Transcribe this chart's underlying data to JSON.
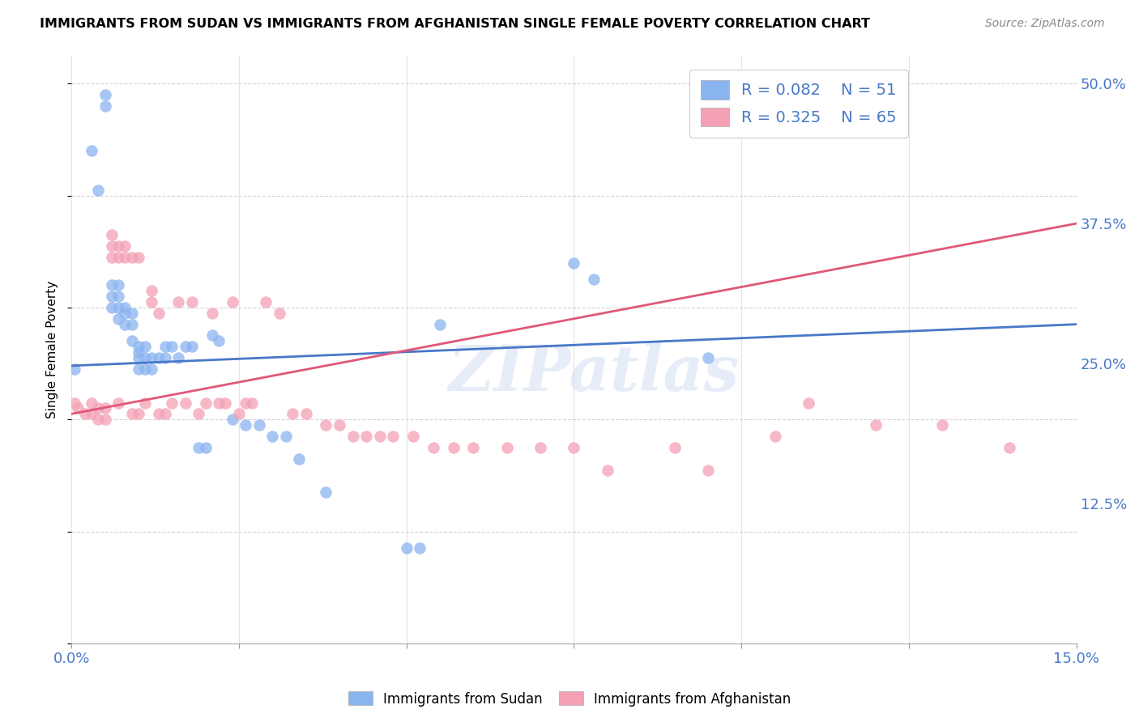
{
  "title": "IMMIGRANTS FROM SUDAN VS IMMIGRANTS FROM AFGHANISTAN SINGLE FEMALE POVERTY CORRELATION CHART",
  "source": "Source: ZipAtlas.com",
  "ylabel": "Single Female Poverty",
  "xlim": [
    0.0,
    0.15
  ],
  "ylim": [
    0.0,
    0.525
  ],
  "ytick_labels": [
    "12.5%",
    "25.0%",
    "37.5%",
    "50.0%"
  ],
  "ytick_values": [
    0.125,
    0.25,
    0.375,
    0.5
  ],
  "watermark": "ZIPatlas",
  "legend_r1": "R = 0.082",
  "legend_n1": "N = 51",
  "legend_r2": "R = 0.325",
  "legend_n2": "N = 65",
  "color_sudan": "#8ab4f0",
  "color_afghanistan": "#f4a0b5",
  "color_line_sudan": "#4878c8",
  "color_line_afghanistan": "#e05878",
  "sudan_x": [
    0.0005,
    0.003,
    0.004,
    0.005,
    0.005,
    0.006,
    0.006,
    0.006,
    0.007,
    0.007,
    0.007,
    0.007,
    0.008,
    0.008,
    0.008,
    0.009,
    0.009,
    0.009,
    0.01,
    0.01,
    0.01,
    0.01,
    0.011,
    0.011,
    0.011,
    0.012,
    0.012,
    0.013,
    0.014,
    0.014,
    0.015,
    0.016,
    0.017,
    0.018,
    0.019,
    0.02,
    0.021,
    0.022,
    0.024,
    0.026,
    0.028,
    0.03,
    0.032,
    0.034,
    0.038,
    0.05,
    0.052,
    0.055,
    0.075,
    0.078,
    0.095
  ],
  "sudan_y": [
    0.245,
    0.44,
    0.405,
    0.49,
    0.48,
    0.32,
    0.31,
    0.3,
    0.32,
    0.31,
    0.3,
    0.29,
    0.3,
    0.295,
    0.285,
    0.295,
    0.285,
    0.27,
    0.265,
    0.26,
    0.255,
    0.245,
    0.265,
    0.255,
    0.245,
    0.255,
    0.245,
    0.255,
    0.265,
    0.255,
    0.265,
    0.255,
    0.265,
    0.265,
    0.175,
    0.175,
    0.275,
    0.27,
    0.2,
    0.195,
    0.195,
    0.185,
    0.185,
    0.165,
    0.135,
    0.085,
    0.085,
    0.285,
    0.34,
    0.325,
    0.255
  ],
  "afghanistan_x": [
    0.0005,
    0.001,
    0.002,
    0.003,
    0.003,
    0.004,
    0.004,
    0.005,
    0.005,
    0.006,
    0.006,
    0.006,
    0.007,
    0.007,
    0.007,
    0.008,
    0.008,
    0.009,
    0.009,
    0.01,
    0.01,
    0.011,
    0.012,
    0.012,
    0.013,
    0.013,
    0.014,
    0.015,
    0.016,
    0.017,
    0.018,
    0.019,
    0.02,
    0.021,
    0.022,
    0.023,
    0.024,
    0.025,
    0.026,
    0.027,
    0.029,
    0.031,
    0.033,
    0.035,
    0.038,
    0.04,
    0.042,
    0.044,
    0.046,
    0.048,
    0.051,
    0.054,
    0.057,
    0.06,
    0.065,
    0.07,
    0.075,
    0.08,
    0.09,
    0.095,
    0.105,
    0.11,
    0.12,
    0.13,
    0.14
  ],
  "afghanistan_y": [
    0.215,
    0.21,
    0.205,
    0.215,
    0.205,
    0.21,
    0.2,
    0.21,
    0.2,
    0.365,
    0.355,
    0.345,
    0.355,
    0.345,
    0.215,
    0.355,
    0.345,
    0.345,
    0.205,
    0.345,
    0.205,
    0.215,
    0.315,
    0.305,
    0.295,
    0.205,
    0.205,
    0.215,
    0.305,
    0.215,
    0.305,
    0.205,
    0.215,
    0.295,
    0.215,
    0.215,
    0.305,
    0.205,
    0.215,
    0.215,
    0.305,
    0.295,
    0.205,
    0.205,
    0.195,
    0.195,
    0.185,
    0.185,
    0.185,
    0.185,
    0.185,
    0.175,
    0.175,
    0.175,
    0.175,
    0.175,
    0.175,
    0.155,
    0.175,
    0.155,
    0.185,
    0.215,
    0.195,
    0.195,
    0.175
  ]
}
